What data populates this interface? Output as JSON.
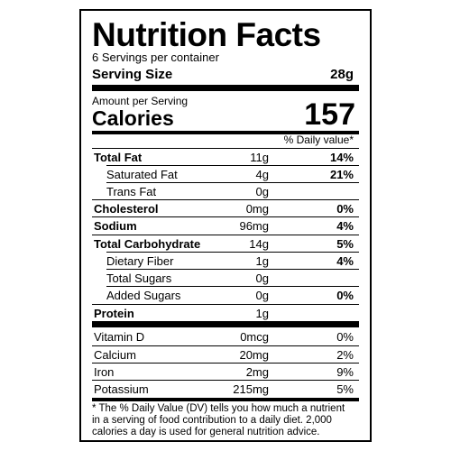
{
  "header": {
    "title": "Nutrition Facts",
    "servings": "6 Servings per container",
    "serving_size_label": "Serving Size",
    "serving_size": "28g"
  },
  "calories": {
    "caption": "Amount per Serving",
    "label": "Calories",
    "value": "157"
  },
  "daily_value_header": "% Daily value*",
  "nutrients": [
    {
      "name": "Total Fat",
      "amount": "11g",
      "dv": "14%"
    },
    {
      "name": "Saturated Fat",
      "amount": "4g",
      "dv": "21%"
    },
    {
      "name": "Trans Fat",
      "amount": "0g"
    },
    {
      "name": "Cholesterol",
      "amount": "0mg",
      "dv": "0%"
    },
    {
      "name": "Sodium",
      "amount": "96mg",
      "dv": "4%"
    },
    {
      "name": "Total Carbohydrate",
      "amount": "14g",
      "dv": "5%"
    },
    {
      "name": "Dietary Fiber",
      "amount": "1g",
      "dv": "4%"
    },
    {
      "name": "Total Sugars",
      "amount": "0g"
    },
    {
      "name": "Added Sugars",
      "amount": "0g",
      "dv": "0%"
    },
    {
      "name": "Protein",
      "amount": "1g"
    }
  ],
  "vitamins": [
    {
      "name": "Vitamin D",
      "amount": "0mcg",
      "dv": "0%"
    },
    {
      "name": "Calcium",
      "amount": "20mg",
      "dv": "2%"
    },
    {
      "name": "Iron",
      "amount": "2mg",
      "dv": "9%"
    },
    {
      "name": "Potassium",
      "amount": "215mg",
      "dv": "5%"
    }
  ],
  "footnote": [
    "* The % Daily Value (DV) tells you how much a nutrient",
    "in a serving of food contribution to a daily diet. 2,000",
    "calories a day is used for general nutrition advice."
  ]
}
